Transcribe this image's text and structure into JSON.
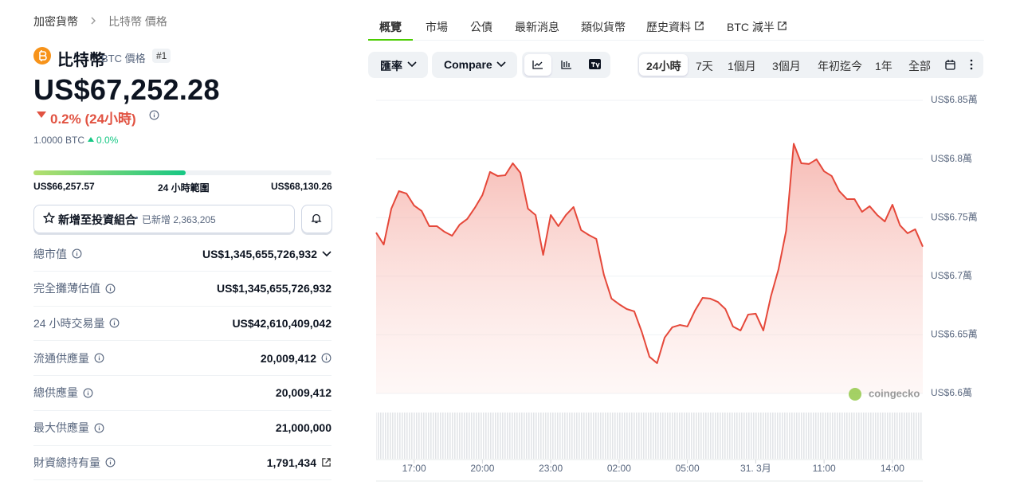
{
  "breadcrumb": [
    "加密貨幣",
    "比特幣 價格"
  ],
  "coin": {
    "name": "比特幣",
    "symbol_label": "BTC 價格",
    "rank": "#1",
    "price": "US$67,252.28",
    "change": "0.2% (24小時)",
    "btc_amount": "1.0000 BTC",
    "btc_change": "0.0%"
  },
  "range": {
    "low": "US$66,257.57",
    "label": "24 小時範圍",
    "high": "US$68,130.26"
  },
  "portfolio": {
    "button": "新增至投資組合",
    "added": "已新增 2,363,205"
  },
  "stats": [
    {
      "label": "總市值",
      "value": "US$1,345,655,726,932"
    },
    {
      "label": "完全攤薄估值",
      "value": "US$1,345,655,726,932"
    },
    {
      "label": "24 小時交易量",
      "value": "US$42,610,409,042"
    },
    {
      "label": "流通供應量",
      "value": "20,009,412"
    },
    {
      "label": "總供應量",
      "value": "20,009,412"
    },
    {
      "label": "最大供應量",
      "value": "21,000,000"
    },
    {
      "label": "財資總持有量",
      "value": "1,791,434"
    }
  ],
  "tabs": [
    "概覽",
    "市場",
    "公債",
    "最新消息",
    "類似貨幣",
    "歷史資料",
    "BTC 減半"
  ],
  "toolbar": {
    "currency": "匯率",
    "compare": "Compare",
    "periods": [
      "24小時",
      "7天",
      "1個月",
      "3個月",
      "年初迄今",
      "1年",
      "全部"
    ]
  },
  "watermark": "coingecko",
  "chart_data": {
    "type": "line",
    "color": "#e5483a",
    "x": [
      920,
      940,
      960,
      980,
      1000,
      1020,
      1040,
      1060,
      1080,
      1100,
      1120,
      1140,
      1160,
      1180,
      1200,
      1220,
      1240,
      1260,
      1280,
      1300,
      1320,
      1340,
      1360,
      1380,
      1400,
      1420,
      1440,
      1460,
      1480,
      1500,
      1520,
      1540,
      1560,
      1580,
      1600,
      1620,
      1640,
      1660,
      1680,
      1700,
      1720,
      1740,
      1760,
      1780,
      1800,
      1820,
      1840,
      1860,
      1880,
      1900,
      1920,
      1940,
      1960,
      1980,
      2000,
      2020,
      2040,
      2060,
      2080,
      2100,
      2120,
      2140,
      2160,
      2180,
      2200,
      2220,
      2240,
      2260,
      2280,
      2300,
      2320,
      2340,
      2360
    ],
    "values": [
      67372,
      67270,
      67576,
      67726,
      67705,
      67603,
      67556,
      67427,
      67427,
      67379,
      67345,
      67440,
      67488,
      67583,
      67692,
      67889,
      67855,
      67861,
      67963,
      67882,
      67576,
      67522,
      67182,
      67522,
      67427,
      67522,
      67590,
      67393,
      67352,
      67318,
      67012,
      66809,
      66761,
      66720,
      66700,
      66523,
      66313,
      66258,
      66476,
      66564,
      66584,
      66571,
      66707,
      66815,
      66809,
      66781,
      66720,
      66571,
      66537,
      66673,
      66680,
      66537,
      66829,
      67060,
      67386,
      68130,
      67963,
      67957,
      67997,
      67895,
      67855,
      67726,
      67658,
      67658,
      67549,
      67597,
      67522,
      67467,
      67610,
      67434,
      67366,
      67400,
      67252
    ],
    "xlim": [
      920,
      2360
    ],
    "xticks": [
      {
        "value": 1020,
        "label": "17:00"
      },
      {
        "value": 1200,
        "label": "20:00"
      },
      {
        "value": 1380,
        "label": "23:00"
      },
      {
        "value": 1560,
        "label": "02:00"
      },
      {
        "value": 1740,
        "label": "05:00"
      },
      {
        "value": 1920,
        "label": "31. 3月"
      },
      {
        "value": 2100,
        "label": "11:00"
      },
      {
        "value": 2280,
        "label": "14:00"
      }
    ],
    "ylim": [
      66000,
      68500
    ],
    "yticks": [
      {
        "value": 66000,
        "label": "US$6.6萬"
      },
      {
        "value": 66500,
        "label": "US$6.65萬"
      },
      {
        "value": 67000,
        "label": "US$6.7萬"
      },
      {
        "value": 67500,
        "label": "US$6.75萬"
      },
      {
        "value": 68000,
        "label": "US$6.8萬"
      },
      {
        "value": 68500,
        "label": "US$6.85萬"
      }
    ],
    "grid": true
  }
}
